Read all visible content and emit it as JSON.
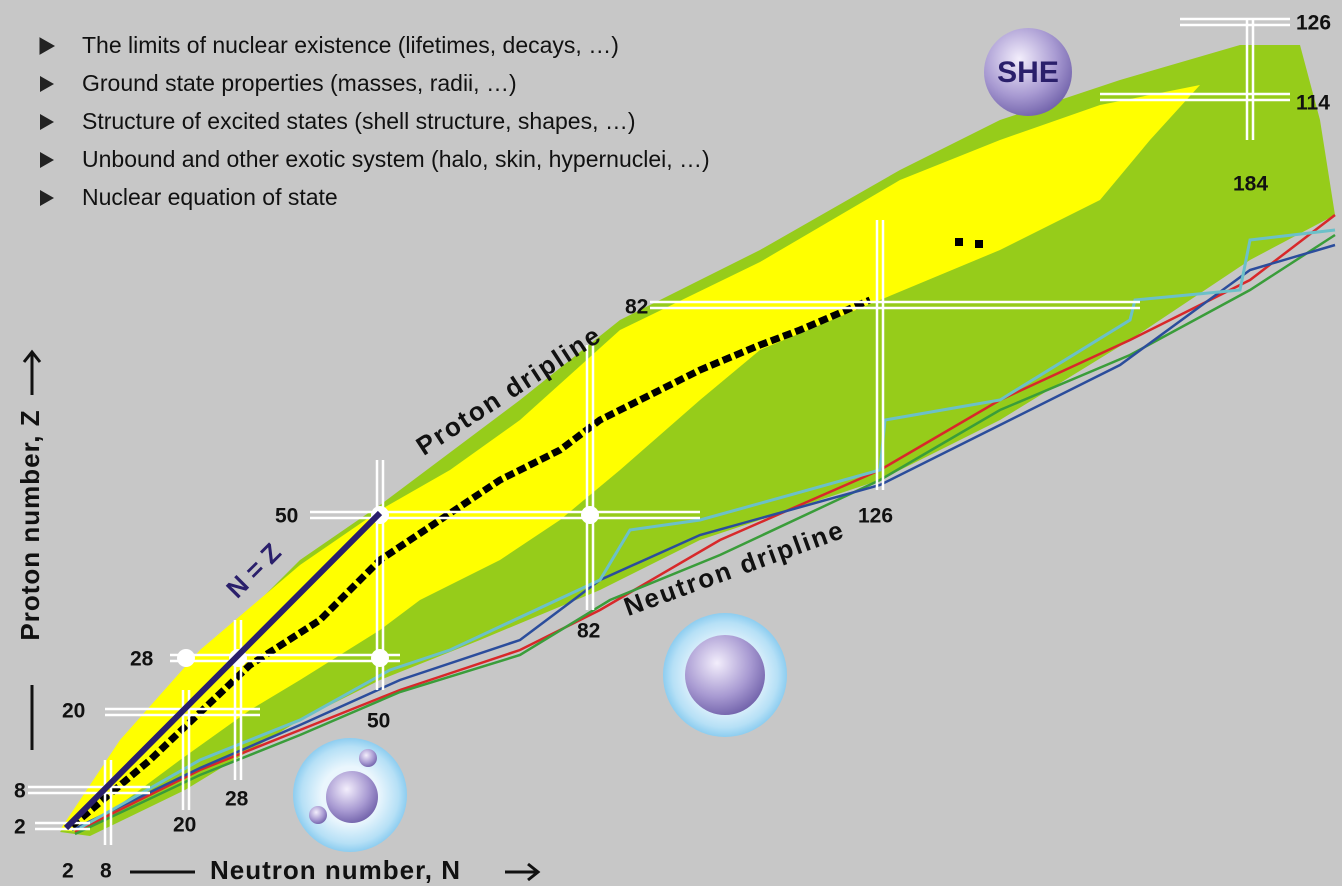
{
  "bullets": [
    "The limits of nuclear existence (lifetimes, decays, …)",
    "Ground state properties (masses, radii, …)",
    "Structure of excited states (shell structure, shapes, …)",
    "Unbound and other exotic system (halo, skin, hypernuclei, …)",
    "Nuclear equation of state"
  ],
  "labels": {
    "she": "SHE",
    "proton_dripline": "Proton dripline",
    "neutron_dripline": "Neutron dripline",
    "n_equals_z": "N = Z"
  },
  "axes": {
    "x_title": "Neutron number, N",
    "y_title": "Proton number, Z"
  },
  "magic_numbers": {
    "proton": [
      "2",
      "8",
      "20",
      "28",
      "50",
      "82",
      "114",
      "126"
    ],
    "neutron": [
      "2",
      "8",
      "20",
      "28",
      "50",
      "82",
      "126",
      "184"
    ]
  }
}
